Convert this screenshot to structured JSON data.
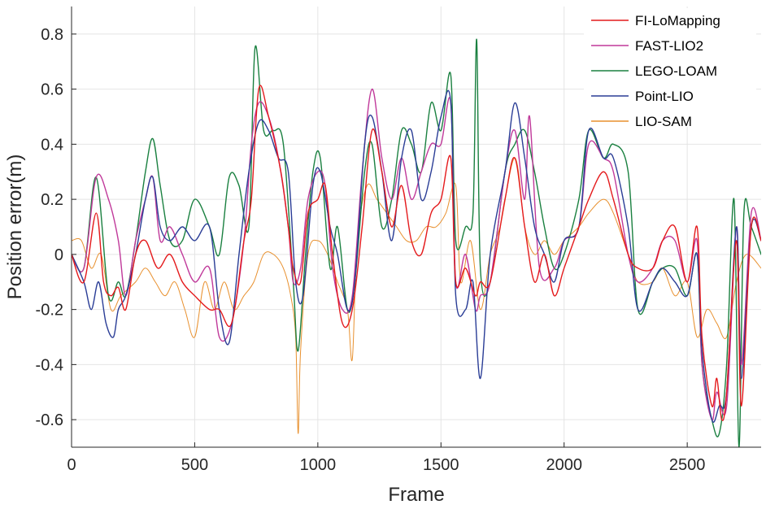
{
  "chart_data": {
    "type": "line",
    "title": "",
    "xlabel": "Frame",
    "ylabel": "Position error(m)",
    "xlim": [
      0,
      2800
    ],
    "ylim": [
      -0.7,
      0.9
    ],
    "xticks": [
      0,
      500,
      1000,
      1500,
      2000,
      2500
    ],
    "yticks": [
      -0.6,
      -0.4,
      -0.2,
      0,
      0.2,
      0.4,
      0.6,
      0.8
    ],
    "xtick_labels": [
      "0",
      "500",
      "1000",
      "1500",
      "2000",
      "2500"
    ],
    "ytick_labels": [
      "-0.6",
      "-0.4",
      "-0.2",
      "0",
      "0.2",
      "0.4",
      "0.6",
      "0.8"
    ],
    "grid": true,
    "legend_position": "top-right",
    "series": [
      {
        "name": "FI-LoMapping",
        "color": "#e41a1c",
        "width": 1.4,
        "x": [
          0,
          50,
          100,
          130,
          160,
          190,
          220,
          260,
          300,
          350,
          400,
          450,
          500,
          560,
          600,
          650,
          700,
          730,
          760,
          800,
          850,
          880,
          900,
          930,
          960,
          1000,
          1030,
          1060,
          1100,
          1140,
          1180,
          1220,
          1260,
          1300,
          1340,
          1380,
          1420,
          1460,
          1500,
          1540,
          1560,
          1600,
          1640,
          1660,
          1700,
          1760,
          1800,
          1840,
          1880,
          1920,
          1960,
          2000,
          2060,
          2100,
          2160,
          2200,
          2260,
          2300,
          2360,
          2400,
          2450,
          2500,
          2540,
          2560,
          2600,
          2620,
          2640,
          2660,
          2700,
          2720,
          2760,
          2800
        ],
        "y": [
          0.0,
          -0.1,
          0.15,
          -0.1,
          -0.15,
          -0.12,
          -0.2,
          0.0,
          0.05,
          -0.05,
          0.0,
          -0.1,
          -0.15,
          -0.2,
          -0.2,
          -0.25,
          0.05,
          0.2,
          0.6,
          0.5,
          0.3,
          0.1,
          -0.05,
          -0.1,
          0.15,
          0.2,
          0.25,
          0.0,
          -0.25,
          -0.2,
          0.1,
          0.45,
          0.3,
          0.1,
          0.25,
          0.05,
          0.0,
          0.15,
          0.2,
          0.35,
          -0.1,
          -0.05,
          -0.15,
          -0.1,
          -0.1,
          0.2,
          0.35,
          0.1,
          -0.1,
          0.0,
          -0.15,
          -0.05,
          0.1,
          0.2,
          0.3,
          0.2,
          0.0,
          -0.05,
          -0.05,
          0.05,
          0.1,
          -0.1,
          0.1,
          -0.3,
          -0.55,
          -0.45,
          -0.6,
          -0.5,
          0.05,
          -0.55,
          0.1,
          0.05
        ]
      },
      {
        "name": "FAST-LIO2",
        "color": "#c0399a",
        "width": 1.4,
        "x": [
          0,
          50,
          100,
          150,
          190,
          220,
          260,
          300,
          330,
          360,
          400,
          450,
          500,
          560,
          600,
          650,
          700,
          730,
          760,
          800,
          840,
          880,
          900,
          930,
          960,
          1000,
          1030,
          1060,
          1100,
          1140,
          1180,
          1220,
          1260,
          1300,
          1340,
          1380,
          1420,
          1460,
          1500,
          1540,
          1560,
          1600,
          1640,
          1660,
          1700,
          1760,
          1800,
          1840,
          1860,
          1900,
          1960,
          2000,
          2060,
          2100,
          2160,
          2200,
          2260,
          2300,
          2360,
          2400,
          2450,
          2500,
          2540,
          2560,
          2600,
          2620,
          2660,
          2700,
          2720,
          2760,
          2800
        ],
        "y": [
          0.0,
          -0.05,
          0.28,
          0.2,
          0.05,
          -0.15,
          0.05,
          0.2,
          0.28,
          0.05,
          0.1,
          0.0,
          -0.1,
          -0.05,
          -0.3,
          -0.25,
          0.05,
          0.4,
          0.55,
          0.5,
          0.35,
          0.1,
          -0.1,
          -0.05,
          0.2,
          0.3,
          0.25,
          -0.05,
          -0.2,
          -0.15,
          0.3,
          0.6,
          0.35,
          0.2,
          0.35,
          0.2,
          0.3,
          0.4,
          0.4,
          0.55,
          -0.1,
          0.0,
          -0.2,
          -0.15,
          -0.1,
          0.3,
          0.45,
          0.2,
          0.5,
          -0.05,
          -0.05,
          0.05,
          0.1,
          0.4,
          0.35,
          0.3,
          0.0,
          -0.1,
          -0.05,
          0.05,
          0.05,
          -0.1,
          0.05,
          -0.4,
          -0.6,
          -0.5,
          -0.55,
          0.1,
          -0.4,
          0.15,
          0.05
        ]
      },
      {
        "name": "LEGO-LOAM",
        "color": "#1a8040",
        "width": 1.4,
        "x": [
          0,
          50,
          100,
          150,
          190,
          220,
          260,
          300,
          330,
          360,
          400,
          450,
          500,
          560,
          600,
          640,
          680,
          720,
          745,
          780,
          820,
          860,
          900,
          920,
          950,
          980,
          1010,
          1050,
          1080,
          1120,
          1150,
          1190,
          1220,
          1260,
          1300,
          1340,
          1380,
          1420,
          1460,
          1500,
          1540,
          1560,
          1600,
          1630,
          1645,
          1660,
          1700,
          1760,
          1800,
          1840,
          1880,
          1920,
          1960,
          2000,
          2060,
          2100,
          2160,
          2200,
          2260,
          2300,
          2360,
          2400,
          2450,
          2500,
          2540,
          2560,
          2600,
          2630,
          2660,
          2690,
          2710,
          2730,
          2760,
          2800
        ],
        "y": [
          0.0,
          -0.05,
          0.28,
          -0.15,
          -0.1,
          -0.15,
          0.05,
          0.3,
          0.42,
          0.25,
          0.05,
          0.05,
          0.2,
          0.1,
          0.0,
          0.28,
          0.25,
          0.1,
          0.75,
          0.45,
          0.45,
          0.4,
          -0.1,
          -0.35,
          0.0,
          0.3,
          0.35,
          -0.05,
          0.1,
          -0.2,
          -0.1,
          0.3,
          0.4,
          0.1,
          0.2,
          0.45,
          0.4,
          0.3,
          0.55,
          0.45,
          0.65,
          0.05,
          0.1,
          0.15,
          0.78,
          -0.05,
          -0.1,
          0.3,
          0.4,
          0.45,
          0.3,
          0.1,
          -0.05,
          0.0,
          0.2,
          0.45,
          0.35,
          0.4,
          0.3,
          -0.2,
          -0.1,
          -0.05,
          -0.05,
          -0.15,
          0.0,
          -0.4,
          -0.6,
          -0.65,
          -0.4,
          0.2,
          -0.7,
          0.15,
          0.1,
          0.0
        ]
      },
      {
        "name": "Point-LIO",
        "color": "#2a3d96",
        "width": 1.4,
        "x": [
          0,
          50,
          80,
          110,
          140,
          170,
          190,
          220,
          260,
          300,
          330,
          360,
          400,
          450,
          500,
          560,
          600,
          640,
          680,
          720,
          760,
          800,
          840,
          880,
          910,
          940,
          980,
          1010,
          1050,
          1080,
          1120,
          1150,
          1190,
          1220,
          1260,
          1300,
          1340,
          1380,
          1420,
          1460,
          1500,
          1540,
          1560,
          1600,
          1630,
          1660,
          1700,
          1760,
          1800,
          1840,
          1880,
          1920,
          1960,
          2000,
          2060,
          2100,
          2160,
          2200,
          2260,
          2300,
          2360,
          2400,
          2450,
          2500,
          2540,
          2560,
          2600,
          2630,
          2660,
          2700,
          2720,
          2760,
          2800
        ],
        "y": [
          0.0,
          -0.1,
          -0.2,
          -0.1,
          -0.25,
          -0.3,
          -0.2,
          -0.15,
          0.0,
          0.2,
          0.28,
          0.1,
          0.05,
          0.1,
          0.05,
          0.1,
          -0.2,
          -0.32,
          0.0,
          0.3,
          0.48,
          0.45,
          0.35,
          0.3,
          -0.1,
          -0.15,
          0.25,
          0.3,
          0.1,
          0.0,
          -0.2,
          -0.1,
          0.4,
          0.5,
          0.3,
          0.05,
          0.35,
          0.45,
          0.2,
          0.3,
          0.5,
          0.55,
          -0.15,
          -0.2,
          -0.1,
          -0.45,
          0.0,
          0.3,
          0.55,
          0.35,
          0.1,
          0.0,
          -0.1,
          0.05,
          0.1,
          0.45,
          0.35,
          0.35,
          0.1,
          -0.2,
          -0.1,
          -0.05,
          -0.1,
          -0.15,
          0.0,
          -0.35,
          -0.6,
          -0.55,
          -0.5,
          0.1,
          -0.45,
          0.1,
          0.05
        ]
      },
      {
        "name": "LIO-SAM",
        "color": "#e8902e",
        "width": 1.0,
        "x": [
          0,
          40,
          80,
          120,
          160,
          200,
          260,
          300,
          340,
          380,
          420,
          460,
          500,
          540,
          580,
          620,
          660,
          700,
          740,
          780,
          820,
          860,
          890,
          910,
          920,
          930,
          960,
          1000,
          1040,
          1080,
          1120,
          1140,
          1160,
          1200,
          1240,
          1280,
          1320,
          1360,
          1400,
          1440,
          1480,
          1520,
          1560,
          1580,
          1620,
          1660,
          1700,
          1740,
          1800,
          1840,
          1880,
          1920,
          1960,
          2000,
          2060,
          2100,
          2160,
          2200,
          2260,
          2300,
          2360,
          2400,
          2450,
          2500,
          2540,
          2580,
          2620,
          2660,
          2700,
          2740,
          2800
        ],
        "y": [
          0.05,
          0.05,
          -0.05,
          0.0,
          -0.2,
          -0.15,
          -0.1,
          -0.05,
          -0.1,
          -0.15,
          -0.1,
          -0.2,
          -0.3,
          -0.1,
          -0.2,
          -0.1,
          -0.2,
          -0.15,
          -0.1,
          0.0,
          0.0,
          -0.05,
          -0.15,
          -0.3,
          -0.65,
          -0.35,
          0.0,
          0.05,
          0.0,
          -0.1,
          -0.2,
          -0.38,
          0.05,
          0.25,
          0.2,
          0.15,
          0.1,
          0.05,
          0.05,
          0.1,
          0.1,
          0.15,
          0.25,
          -0.1,
          0.05,
          -0.2,
          0.0,
          0.1,
          0.35,
          0.1,
          0.0,
          0.05,
          0.0,
          0.05,
          0.1,
          0.15,
          0.2,
          0.15,
          0.0,
          -0.1,
          -0.1,
          -0.05,
          -0.15,
          -0.1,
          -0.3,
          -0.2,
          -0.25,
          -0.3,
          -0.1,
          0.0,
          -0.05
        ]
      }
    ]
  }
}
